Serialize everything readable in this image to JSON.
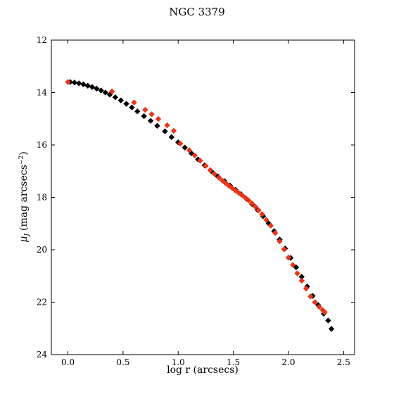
{
  "chart_data": {
    "type": "scatter",
    "title": "NGC 3379",
    "xlabel": "log r (arcsecs)",
    "ylabel": "μ_J (mag arcsecs⁻²)",
    "ylabel_parts": {
      "symbol": "μ",
      "subscript": "J",
      "text": "(mag arcsecs",
      "exponent": "−2",
      "close": ")"
    },
    "xlim": [
      -0.15,
      2.6
    ],
    "ylim": [
      12,
      24
    ],
    "y_inverted": true,
    "xticks": [
      0.0,
      0.5,
      1.0,
      1.5,
      2.0,
      2.5
    ],
    "xtick_labels": [
      "0.0",
      "0.5",
      "1.0",
      "1.5",
      "2.0",
      "2.5"
    ],
    "yticks": [
      12,
      14,
      16,
      18,
      20,
      22,
      24
    ],
    "ytick_labels": [
      "12",
      "14",
      "16",
      "18",
      "20",
      "22",
      "24"
    ],
    "grid": false,
    "legend": "none",
    "marker": "diamond",
    "series": [
      {
        "color": "#000000",
        "x": [
          0.02,
          0.06,
          0.1,
          0.14,
          0.18,
          0.22,
          0.26,
          0.3,
          0.34,
          0.38,
          0.43,
          0.48,
          0.53,
          0.58,
          0.63,
          0.69,
          0.75,
          0.81,
          0.88,
          0.94,
          1.0,
          1.06,
          1.12,
          1.18,
          1.24,
          1.3,
          1.36,
          1.42,
          1.47,
          1.52,
          1.57,
          1.62,
          1.67,
          1.72,
          1.77,
          1.82,
          1.87,
          1.92,
          1.97,
          2.02,
          2.07,
          2.12,
          2.17,
          2.22,
          2.27,
          2.32,
          2.36,
          2.39
        ],
        "y": [
          13.6,
          13.62,
          13.65,
          13.69,
          13.74,
          13.79,
          13.85,
          13.92,
          14.0,
          14.08,
          14.18,
          14.3,
          14.43,
          14.57,
          14.72,
          14.9,
          15.08,
          15.27,
          15.48,
          15.7,
          15.9,
          16.1,
          16.32,
          16.55,
          16.78,
          17.0,
          17.2,
          17.38,
          17.55,
          17.71,
          17.88,
          18.06,
          18.26,
          18.48,
          18.72,
          18.99,
          19.29,
          19.61,
          19.95,
          20.31,
          20.67,
          21.03,
          21.4,
          21.76,
          22.11,
          22.44,
          22.7,
          23.02
        ]
      },
      {
        "color": "#e8361a",
        "x": [
          0.0,
          0.4,
          0.6,
          0.7,
          0.76,
          0.82,
          0.9,
          0.96,
          1.02,
          1.1,
          1.15,
          1.2,
          1.25,
          1.29,
          1.33,
          1.37,
          1.4,
          1.43,
          1.46,
          1.49,
          1.52,
          1.55,
          1.58,
          1.61,
          1.64,
          1.67,
          1.7,
          1.73,
          1.76,
          1.8,
          1.84,
          1.88,
          1.92,
          1.96,
          2.0,
          2.04,
          2.08,
          2.12,
          2.16,
          2.2,
          2.24,
          2.28,
          2.31,
          2.33
        ],
        "y": [
          13.6,
          13.96,
          14.38,
          14.66,
          14.83,
          15.01,
          15.25,
          15.46,
          15.95,
          16.2,
          16.4,
          16.6,
          16.8,
          16.96,
          17.11,
          17.25,
          17.36,
          17.46,
          17.56,
          17.65,
          17.74,
          17.83,
          17.92,
          18.02,
          18.12,
          18.23,
          18.36,
          18.49,
          18.64,
          18.86,
          19.08,
          19.36,
          19.68,
          19.98,
          20.3,
          20.58,
          20.9,
          21.18,
          21.48,
          21.78,
          22.0,
          22.18,
          22.3,
          22.38
        ]
      }
    ]
  }
}
